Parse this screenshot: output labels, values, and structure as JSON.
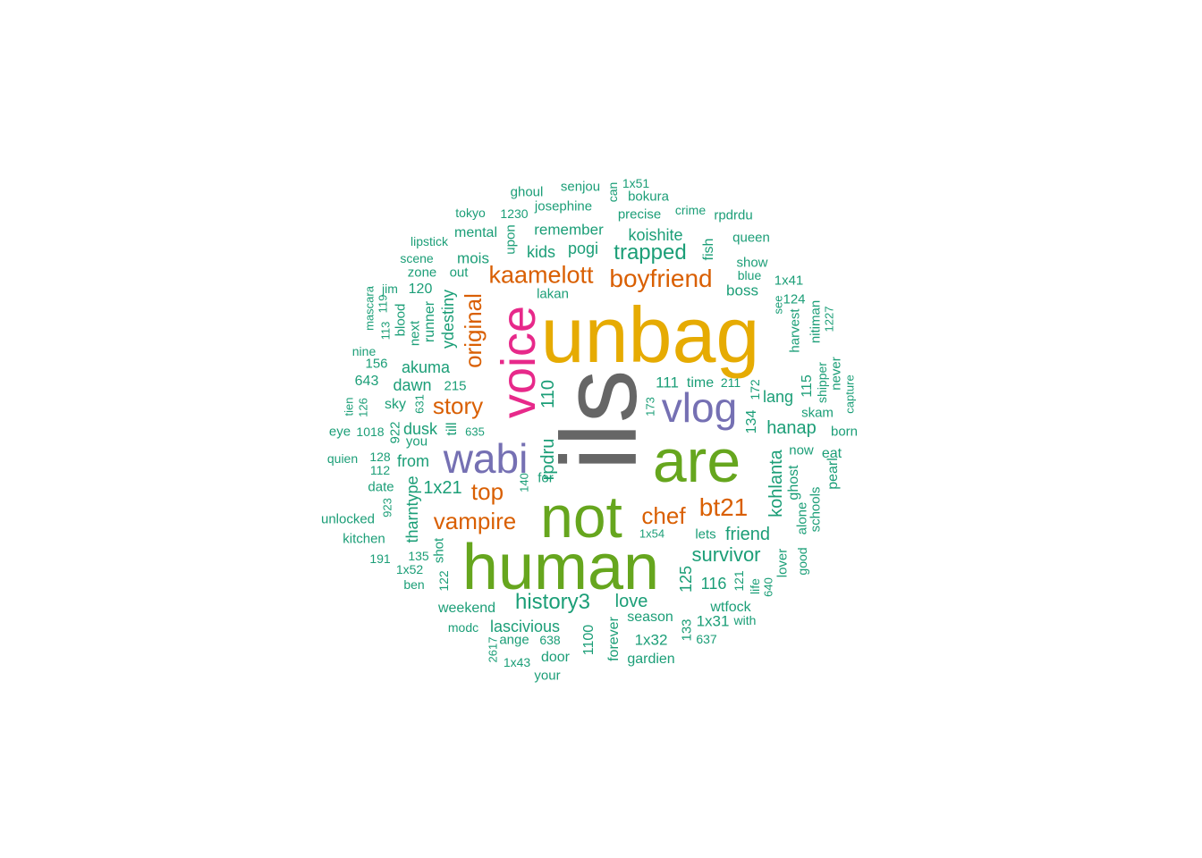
{
  "palette": {
    "gray": "#666666",
    "gold": "#E6AB02",
    "green": "#66A61E",
    "pink": "#E7298A",
    "purple": "#7570B3",
    "orange": "#D95F02",
    "teal": "#1B9E77"
  },
  "words": [
    {
      "id": "ils",
      "text": "ils",
      "color": "gray"
    },
    {
      "id": "unbag",
      "text": "unbag",
      "color": "gold"
    },
    {
      "id": "human",
      "text": "human",
      "color": "green"
    },
    {
      "id": "not",
      "text": "not",
      "color": "green"
    },
    {
      "id": "are",
      "text": "are",
      "color": "green"
    },
    {
      "id": "voice",
      "text": "voice",
      "color": "pink"
    },
    {
      "id": "wabi",
      "text": "wabi",
      "color": "purple"
    },
    {
      "id": "vlog",
      "text": "vlog",
      "color": "purple"
    },
    {
      "id": "kaamelott",
      "text": "kaamelott",
      "color": "orange"
    },
    {
      "id": "boyfriend",
      "text": "boyfriend",
      "color": "orange"
    },
    {
      "id": "original",
      "text": "original",
      "color": "orange"
    },
    {
      "id": "story",
      "text": "story",
      "color": "orange"
    },
    {
      "id": "top",
      "text": "top",
      "color": "orange"
    },
    {
      "id": "vampire",
      "text": "vampire",
      "color": "orange"
    },
    {
      "id": "chef",
      "text": "chef",
      "color": "orange"
    },
    {
      "id": "bt21",
      "text": "bt21",
      "color": "orange"
    },
    {
      "id": "trapped",
      "text": "trapped",
      "color": "teal"
    },
    {
      "id": "history3",
      "text": "history3",
      "color": "teal"
    },
    {
      "id": "survivor",
      "text": "survivor",
      "color": "teal"
    },
    {
      "id": "1x21",
      "text": "1x21",
      "color": "teal"
    },
    {
      "id": "rpdru",
      "text": "rpdru",
      "color": "teal"
    },
    {
      "id": "110",
      "text": "110",
      "color": "teal"
    },
    {
      "id": "kids",
      "text": "kids",
      "color": "teal"
    },
    {
      "id": "pogi",
      "text": "pogi",
      "color": "teal"
    },
    {
      "id": "koishite",
      "text": "koishite",
      "color": "teal"
    },
    {
      "id": "remember",
      "text": "remember",
      "color": "teal"
    },
    {
      "id": "josephine",
      "text": "josephine",
      "color": "teal"
    },
    {
      "id": "precise",
      "text": "precise",
      "color": "teal"
    },
    {
      "id": "senjou",
      "text": "senjou",
      "color": "teal"
    },
    {
      "id": "ghoul",
      "text": "ghoul",
      "color": "teal"
    },
    {
      "id": "can",
      "text": "can",
      "color": "teal"
    },
    {
      "id": "1x51",
      "text": "1x51",
      "color": "teal"
    },
    {
      "id": "bokura",
      "text": "bokura",
      "color": "teal"
    },
    {
      "id": "crime",
      "text": "crime",
      "color": "teal"
    },
    {
      "id": "rpdrdu",
      "text": "rpdrdu",
      "color": "teal"
    },
    {
      "id": "tokyo",
      "text": "tokyo",
      "color": "teal"
    },
    {
      "id": "1230",
      "text": "1230",
      "color": "teal"
    },
    {
      "id": "mental",
      "text": "mental",
      "color": "teal"
    },
    {
      "id": "upon",
      "text": "upon",
      "color": "teal"
    },
    {
      "id": "fish",
      "text": "fish",
      "color": "teal"
    },
    {
      "id": "queen",
      "text": "queen",
      "color": "teal"
    },
    {
      "id": "lipstick",
      "text": "lipstick",
      "color": "teal"
    },
    {
      "id": "scene",
      "text": "scene",
      "color": "teal"
    },
    {
      "id": "mois",
      "text": "mois",
      "color": "teal"
    },
    {
      "id": "zone",
      "text": "zone",
      "color": "teal"
    },
    {
      "id": "out",
      "text": "out",
      "color": "teal"
    },
    {
      "id": "show",
      "text": "show",
      "color": "teal"
    },
    {
      "id": "blue",
      "text": "blue",
      "color": "teal"
    },
    {
      "id": "boss",
      "text": "boss",
      "color": "teal"
    },
    {
      "id": "1x41",
      "text": "1x41",
      "color": "teal"
    },
    {
      "id": "mascara",
      "text": "mascara",
      "color": "teal"
    },
    {
      "id": "jim",
      "text": "jim",
      "color": "teal"
    },
    {
      "id": "120",
      "text": "120",
      "color": "teal"
    },
    {
      "id": "lakan",
      "text": "lakan",
      "color": "teal"
    },
    {
      "id": "see",
      "text": "see",
      "color": "teal"
    },
    {
      "id": "harvest",
      "text": "harvest",
      "color": "teal"
    },
    {
      "id": "124",
      "text": "124",
      "color": "teal"
    },
    {
      "id": "nitiman",
      "text": "nitiman",
      "color": "teal"
    },
    {
      "id": "1227",
      "text": "1227",
      "color": "teal"
    },
    {
      "id": "113",
      "text": "113",
      "color": "teal"
    },
    {
      "id": "119",
      "text": "119",
      "color": "teal"
    },
    {
      "id": "blood",
      "text": "blood",
      "color": "teal"
    },
    {
      "id": "next",
      "text": "next",
      "color": "teal"
    },
    {
      "id": "runner",
      "text": "runner",
      "color": "teal"
    },
    {
      "id": "ydestiny",
      "text": "ydestiny",
      "color": "teal"
    },
    {
      "id": "nine",
      "text": "nine",
      "color": "teal"
    },
    {
      "id": "156",
      "text": "156",
      "color": "teal"
    },
    {
      "id": "akuma",
      "text": "akuma",
      "color": "teal"
    },
    {
      "id": "643",
      "text": "643",
      "color": "teal"
    },
    {
      "id": "dawn",
      "text": "dawn",
      "color": "teal"
    },
    {
      "id": "215",
      "text": "215",
      "color": "teal"
    },
    {
      "id": "111",
      "text": "111",
      "color": "teal"
    },
    {
      "id": "time",
      "text": "time",
      "color": "teal"
    },
    {
      "id": "211",
      "text": "211",
      "color": "teal"
    },
    {
      "id": "172",
      "text": "172",
      "color": "teal"
    },
    {
      "id": "lang",
      "text": "lang",
      "color": "teal"
    },
    {
      "id": "115",
      "text": "115",
      "color": "teal"
    },
    {
      "id": "shipper",
      "text": "shipper",
      "color": "teal"
    },
    {
      "id": "never",
      "text": "never",
      "color": "teal"
    },
    {
      "id": "capture",
      "text": "capture",
      "color": "teal"
    },
    {
      "id": "tien",
      "text": "tien",
      "color": "teal"
    },
    {
      "id": "126",
      "text": "126",
      "color": "teal"
    },
    {
      "id": "sky",
      "text": "sky",
      "color": "teal"
    },
    {
      "id": "631",
      "text": "631",
      "color": "teal"
    },
    {
      "id": "till",
      "text": "till",
      "color": "teal"
    },
    {
      "id": "173",
      "text": "173",
      "color": "teal"
    },
    {
      "id": "134",
      "text": "134",
      "color": "teal"
    },
    {
      "id": "skam",
      "text": "skam",
      "color": "teal"
    },
    {
      "id": "eye",
      "text": "eye",
      "color": "teal"
    },
    {
      "id": "1018",
      "text": "1018",
      "color": "teal"
    },
    {
      "id": "dusk",
      "text": "dusk",
      "color": "teal"
    },
    {
      "id": "635",
      "text": "635",
      "color": "teal"
    },
    {
      "id": "hanap",
      "text": "hanap",
      "color": "teal"
    },
    {
      "id": "born",
      "text": "born",
      "color": "teal"
    },
    {
      "id": "922",
      "text": "922",
      "color": "teal"
    },
    {
      "id": "you",
      "text": "you",
      "color": "teal"
    },
    {
      "id": "now",
      "text": "now",
      "color": "teal"
    },
    {
      "id": "eat",
      "text": "eat",
      "color": "teal"
    },
    {
      "id": "quien",
      "text": "quien",
      "color": "teal"
    },
    {
      "id": "128",
      "text": "128",
      "color": "teal"
    },
    {
      "id": "from",
      "text": "from",
      "color": "teal"
    },
    {
      "id": "kohlanta",
      "text": "kohlanta",
      "color": "teal"
    },
    {
      "id": "ghost",
      "text": "ghost",
      "color": "teal"
    },
    {
      "id": "pearl",
      "text": "pearl",
      "color": "teal"
    },
    {
      "id": "112",
      "text": "112",
      "color": "teal"
    },
    {
      "id": "for",
      "text": "for",
      "color": "teal"
    },
    {
      "id": "140",
      "text": "140",
      "color": "teal"
    },
    {
      "id": "date",
      "text": "date",
      "color": "teal"
    },
    {
      "id": "tharntype",
      "text": "tharntype",
      "color": "teal"
    },
    {
      "id": "schools",
      "text": "schools",
      "color": "teal"
    },
    {
      "id": "alone",
      "text": "alone",
      "color": "teal"
    },
    {
      "id": "923",
      "text": "923",
      "color": "teal"
    },
    {
      "id": "unlocked",
      "text": "unlocked",
      "color": "teal"
    },
    {
      "id": "kitchen",
      "text": "kitchen",
      "color": "teal"
    },
    {
      "id": "1x54",
      "text": "1x54",
      "color": "teal"
    },
    {
      "id": "lets",
      "text": "lets",
      "color": "teal"
    },
    {
      "id": "friend",
      "text": "friend",
      "color": "teal"
    },
    {
      "id": "good",
      "text": "good",
      "color": "teal"
    },
    {
      "id": "shot",
      "text": "shot",
      "color": "teal"
    },
    {
      "id": "135",
      "text": "135",
      "color": "teal"
    },
    {
      "id": "191",
      "text": "191",
      "color": "teal"
    },
    {
      "id": "1x52",
      "text": "1x52",
      "color": "teal"
    },
    {
      "id": "122",
      "text": "122",
      "color": "teal"
    },
    {
      "id": "125",
      "text": "125",
      "color": "teal"
    },
    {
      "id": "lover",
      "text": "lover",
      "color": "teal"
    },
    {
      "id": "116",
      "text": "116",
      "color": "teal"
    },
    {
      "id": "121",
      "text": "121",
      "color": "teal"
    },
    {
      "id": "ben",
      "text": "ben",
      "color": "teal"
    },
    {
      "id": "life",
      "text": "life",
      "color": "teal"
    },
    {
      "id": "640",
      "text": "640",
      "color": "teal"
    },
    {
      "id": "love",
      "text": "love",
      "color": "teal"
    },
    {
      "id": "weekend",
      "text": "weekend",
      "color": "teal"
    },
    {
      "id": "wtfock",
      "text": "wtfock",
      "color": "teal"
    },
    {
      "id": "season",
      "text": "season",
      "color": "teal"
    },
    {
      "id": "1x31",
      "text": "1x31",
      "color": "teal"
    },
    {
      "id": "with",
      "text": "with",
      "color": "teal"
    },
    {
      "id": "lascivious",
      "text": "lascivious",
      "color": "teal"
    },
    {
      "id": "modc",
      "text": "modc",
      "color": "teal"
    },
    {
      "id": "forever",
      "text": "forever",
      "color": "teal"
    },
    {
      "id": "133",
      "text": "133",
      "color": "teal"
    },
    {
      "id": "ange",
      "text": "ange",
      "color": "teal"
    },
    {
      "id": "638",
      "text": "638",
      "color": "teal"
    },
    {
      "id": "1100",
      "text": "1100",
      "color": "teal"
    },
    {
      "id": "1x32",
      "text": "1x32",
      "color": "teal"
    },
    {
      "id": "637",
      "text": "637",
      "color": "teal"
    },
    {
      "id": "2617",
      "text": "2617",
      "color": "teal"
    },
    {
      "id": "door",
      "text": "door",
      "color": "teal"
    },
    {
      "id": "gardien",
      "text": "gardien",
      "color": "teal"
    },
    {
      "id": "1x43",
      "text": "1x43",
      "color": "teal"
    },
    {
      "id": "your",
      "text": "your",
      "color": "teal"
    }
  ]
}
